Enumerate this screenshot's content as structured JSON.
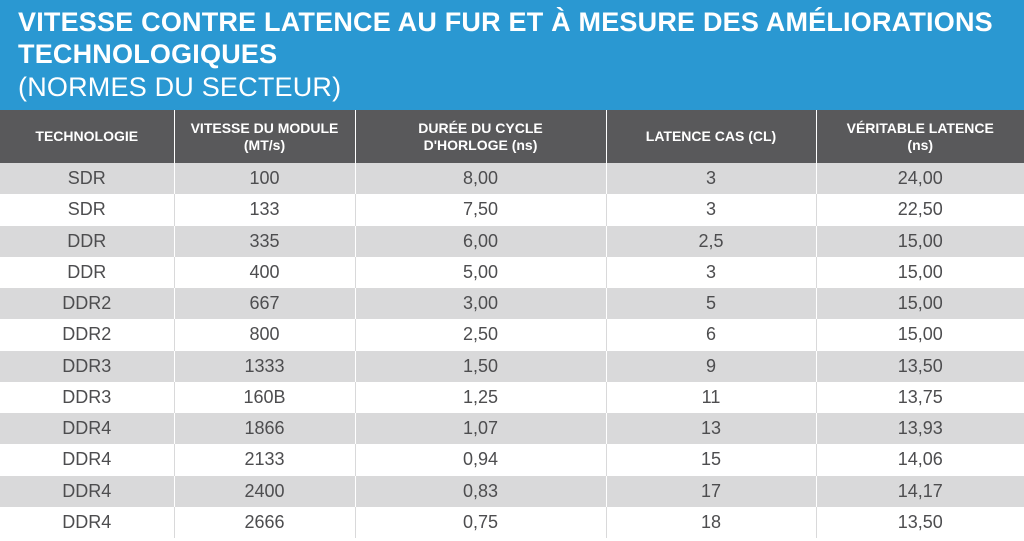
{
  "title": {
    "line1": "VITESSE CONTRE LATENCE AU FUR ET À MESURE DES AMÉLIORATIONS",
    "line2": "TECHNOLOGIQUES",
    "subtitle": "(NORMES DU SECTEUR)"
  },
  "colors": {
    "banner": "#2a98d2",
    "header": "#59595b",
    "row_shade": "#d9d9da",
    "text": "#4d4d4f"
  },
  "table": {
    "headers": [
      {
        "l1": "TECHNOLOGIE",
        "l2": ""
      },
      {
        "l1": "VITESSE DU MODULE",
        "l2": "(MT/s)"
      },
      {
        "l1": "DURÉE DU CYCLE",
        "l2": "D'HORLOGE (ns)"
      },
      {
        "l1": "LATENCE CAS (CL)",
        "l2": ""
      },
      {
        "l1": "VÉRITABLE LATENCE",
        "l2": "(ns)"
      }
    ],
    "rows": [
      [
        "SDR",
        "100",
        "8,00",
        "3",
        "24,00"
      ],
      [
        "SDR",
        "133",
        "7,50",
        "3",
        "22,50"
      ],
      [
        "DDR",
        "335",
        "6,00",
        "2,5",
        "15,00"
      ],
      [
        "DDR",
        "400",
        "5,00",
        "3",
        "15,00"
      ],
      [
        "DDR2",
        "667",
        "3,00",
        "5",
        "15,00"
      ],
      [
        "DDR2",
        "800",
        "2,50",
        "6",
        "15,00"
      ],
      [
        "DDR3",
        "1333",
        "1,50",
        "9",
        "13,50"
      ],
      [
        "DDR3",
        "160B",
        "1,25",
        "11",
        "13,75"
      ],
      [
        "DDR4",
        "1866",
        "1,07",
        "13",
        "13,93"
      ],
      [
        "DDR4",
        "2133",
        "0,94",
        "15",
        "14,06"
      ],
      [
        "DDR4",
        "2400",
        "0,83",
        "17",
        "14,17"
      ],
      [
        "DDR4",
        "2666",
        "0,75",
        "18",
        "13,50"
      ]
    ]
  }
}
